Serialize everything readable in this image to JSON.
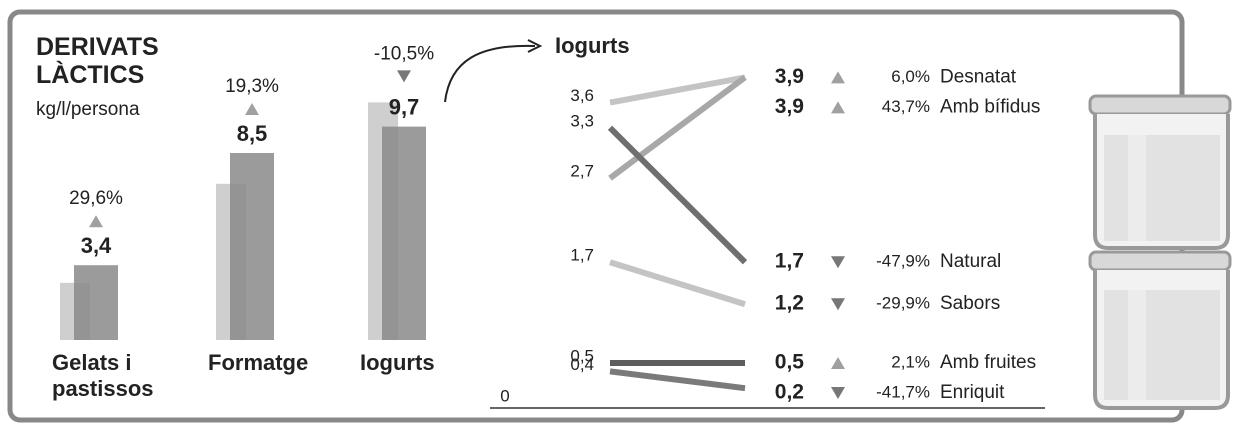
{
  "chart_data": [
    {
      "type": "bar",
      "title": "DERIVATS\nLÀCTICS",
      "subtitle": "kg/l/persona",
      "categories": [
        "Gelats i pastissos",
        "Formatge",
        "Iogurts"
      ],
      "series": [
        {
          "color": "#cfcfcf",
          "values": [
            2.6,
            7.1,
            10.8
          ]
        },
        {
          "color": "#8a8a8a",
          "values": [
            3.4,
            8.5,
            9.7
          ],
          "value_labels": [
            "3,4",
            "8,5",
            "9,7"
          ],
          "changes": [
            29.6,
            19.3,
            -10.5
          ],
          "change_labels": [
            "29,6%",
            "19,3%",
            "-10,5%"
          ]
        }
      ]
    },
    {
      "type": "slope",
      "title": "Iogurts",
      "ylim": [
        0,
        4
      ],
      "yticks": [
        0
      ],
      "series": [
        {
          "name": "Desnatat",
          "color": "#c4c4c4",
          "values": [
            3.6,
            3.9
          ],
          "value_labels": [
            "3,6",
            "3,9"
          ],
          "change": 6.0,
          "change_label": "6,0%"
        },
        {
          "name": "Amb bífidus",
          "color": "#a8a8a8",
          "values": [
            2.7,
            3.9
          ],
          "value_labels": [
            "2,7",
            "3,9"
          ],
          "change": 43.7,
          "change_label": "43,7%"
        },
        {
          "name": "Natural",
          "color": "#6f6f6f",
          "values": [
            3.3,
            1.7
          ],
          "value_labels": [
            "3,3",
            "1,7"
          ],
          "change": -47.9,
          "change_label": "-47,9%"
        },
        {
          "name": "Sabors",
          "color": "#c4c4c4",
          "values": [
            1.7,
            1.2
          ],
          "value_labels": [
            "1,7",
            "1,2"
          ],
          "change": -29.9,
          "change_label": "-29,9%"
        },
        {
          "name": "Amb fruites",
          "color": "#5e5e5e",
          "values": [
            0.5,
            0.5
          ],
          "value_labels": [
            "0,5",
            "0,5"
          ],
          "change": 2.1,
          "change_label": "2,1%"
        },
        {
          "name": "Enriquit",
          "color": "#7a7a7a",
          "values": [
            0.4,
            0.2
          ],
          "value_labels": [
            "0,4",
            "0,2"
          ],
          "change": -41.7,
          "change_label": "-41,7%"
        }
      ]
    }
  ]
}
